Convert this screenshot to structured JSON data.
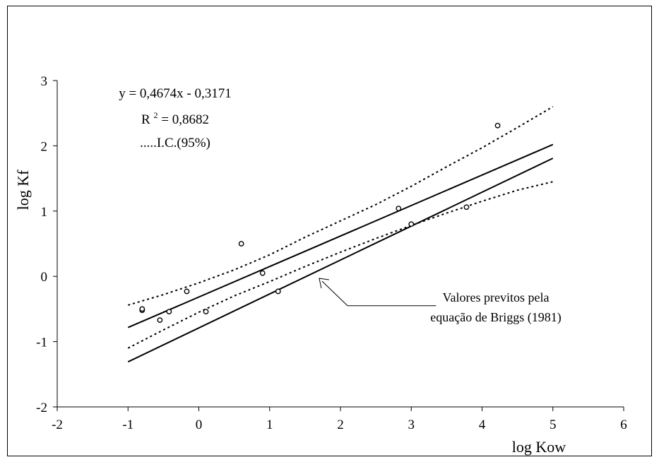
{
  "chart_data": {
    "type": "scatter",
    "xlabel": "log Kow",
    "ylabel": "log Kf",
    "xlim": [
      -2,
      6
    ],
    "ylim": [
      -2,
      3
    ],
    "x_ticks": [
      "-2",
      "-1",
      "0",
      "1",
      "2",
      "3",
      "4",
      "5",
      "6"
    ],
    "y_ticks": [
      "-2",
      "-1",
      "0",
      "1",
      "2",
      "3"
    ],
    "grid": false,
    "annotations": {
      "equation": "y = 0,4674x - 0,3171",
      "r2_prefix": "R",
      "r2_superscript": "2",
      "r2_value": " = 0,8682",
      "ci_label": ".....I.C.(95%)",
      "callout_line1": "Valores previtos pela",
      "callout_line2": "equação de Briggs (1981)"
    },
    "series": [
      {
        "type": "scatter",
        "marker": "open-circle",
        "points": [
          {
            "x": -0.8,
            "y": -0.52
          },
          {
            "x": -0.8,
            "y": -0.5
          },
          {
            "x": -0.55,
            "y": -0.67
          },
          {
            "x": -0.42,
            "y": -0.54
          },
          {
            "x": -0.17,
            "y": -0.23
          },
          {
            "x": 0.1,
            "y": -0.54
          },
          {
            "x": 0.6,
            "y": 0.5
          },
          {
            "x": 0.9,
            "y": 0.05
          },
          {
            "x": 1.12,
            "y": -0.23
          },
          {
            "x": 2.82,
            "y": 1.04
          },
          {
            "x": 3.0,
            "y": 0.8
          },
          {
            "x": 3.78,
            "y": 1.06
          },
          {
            "x": 4.22,
            "y": 2.31
          }
        ]
      },
      {
        "type": "line",
        "style": "solid",
        "points": [
          {
            "x": -1,
            "y": -0.784
          },
          {
            "x": 5,
            "y": 2.02
          }
        ]
      },
      {
        "type": "line",
        "style": "solid",
        "points": [
          {
            "x": -1,
            "y": -1.31
          },
          {
            "x": 5,
            "y": 1.81
          }
        ]
      },
      {
        "type": "line",
        "style": "dotted",
        "points": [
          {
            "x": -1,
            "y": -0.44
          },
          {
            "x": -0.5,
            "y": -0.28
          },
          {
            "x": 0,
            "y": -0.1
          },
          {
            "x": 0.5,
            "y": 0.1
          },
          {
            "x": 1,
            "y": 0.33
          },
          {
            "x": 1.5,
            "y": 0.6
          },
          {
            "x": 2,
            "y": 0.85
          },
          {
            "x": 2.5,
            "y": 1.1
          },
          {
            "x": 3,
            "y": 1.38
          },
          {
            "x": 3.5,
            "y": 1.68
          },
          {
            "x": 4,
            "y": 1.97
          },
          {
            "x": 4.5,
            "y": 2.28
          },
          {
            "x": 5,
            "y": 2.6
          }
        ]
      },
      {
        "type": "line",
        "style": "dotted",
        "points": [
          {
            "x": -1,
            "y": -1.1
          },
          {
            "x": -0.5,
            "y": -0.82
          },
          {
            "x": 0,
            "y": -0.55
          },
          {
            "x": 0.5,
            "y": -0.3
          },
          {
            "x": 1,
            "y": -0.08
          },
          {
            "x": 1.5,
            "y": 0.15
          },
          {
            "x": 2,
            "y": 0.37
          },
          {
            "x": 2.5,
            "y": 0.58
          },
          {
            "x": 3,
            "y": 0.78
          },
          {
            "x": 3.5,
            "y": 0.97
          },
          {
            "x": 4,
            "y": 1.15
          },
          {
            "x": 4.5,
            "y": 1.32
          },
          {
            "x": 5,
            "y": 1.45
          }
        ]
      }
    ],
    "callout_arrow": {
      "from": {
        "x": 2.1,
        "y": -0.45
      },
      "to": {
        "x": 1.7,
        "y": -0.03
      },
      "tail_end_x": 3.35
    }
  }
}
